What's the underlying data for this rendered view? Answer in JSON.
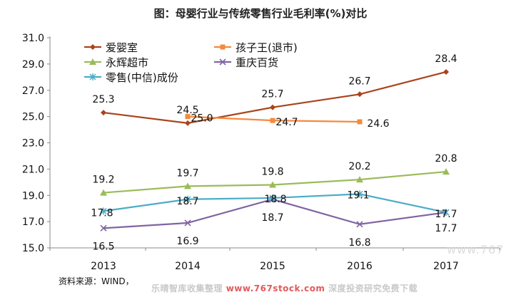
{
  "title": "图：母婴行业与传统零售行业毛利率(%)对比",
  "source": "资料来源：WIND，",
  "watermark": {
    "text": "乐晴智库收集整理",
    "url": "www.767stock.com",
    "suffix": "深度投资研究免费下载",
    "side": "www.767"
  },
  "chart_data": {
    "type": "line",
    "categories": [
      "2013",
      "2014",
      "2015",
      "2016",
      "2017"
    ],
    "ylim": [
      15.0,
      31.0
    ],
    "yticks": [
      "15.0",
      "17.0",
      "19.0",
      "21.0",
      "23.0",
      "25.0",
      "27.0",
      "29.0",
      "31.0"
    ],
    "legend_position": "top-left",
    "grid": false,
    "series": [
      {
        "name": "爱婴室",
        "color": "#a9441c",
        "marker": "diamond",
        "values": [
          25.3,
          24.5,
          25.7,
          26.7,
          28.4
        ]
      },
      {
        "name": "孩子王(退市)",
        "color": "#f5893d",
        "marker": "square",
        "values": [
          null,
          25.0,
          24.7,
          24.6,
          null
        ]
      },
      {
        "name": "永辉超市",
        "color": "#9bbb59",
        "marker": "triangle",
        "values": [
          19.2,
          19.7,
          19.8,
          20.2,
          20.8
        ]
      },
      {
        "name": "重庆百货",
        "color": "#8064a2",
        "marker": "x",
        "values": [
          16.5,
          16.9,
          18.7,
          16.8,
          17.7
        ]
      },
      {
        "name": "零售(中信)成份",
        "color": "#4bacc6",
        "marker": "star",
        "values": [
          17.8,
          18.7,
          18.8,
          19.1,
          17.7
        ]
      }
    ]
  }
}
